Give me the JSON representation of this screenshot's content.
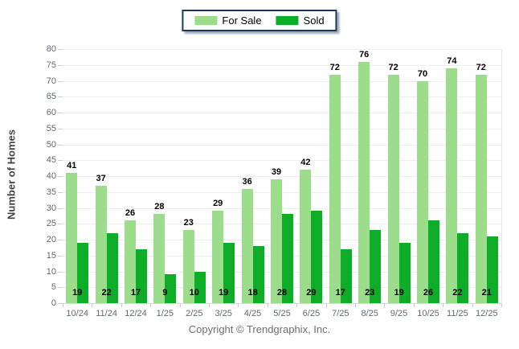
{
  "chart_data": {
    "type": "bar",
    "title": "",
    "categories": [
      "10/24",
      "11/24",
      "12/24",
      "1/25",
      "2/25",
      "3/25",
      "4/25",
      "5/25",
      "6/25",
      "7/25",
      "8/25",
      "9/25",
      "10/25",
      "11/25",
      "12/25"
    ],
    "series": [
      {
        "name": "For Sale",
        "color": "#9CDD8C",
        "values": [
          41,
          37,
          26,
          28,
          23,
          29,
          36,
          39,
          42,
          72,
          76,
          72,
          70,
          74,
          72
        ]
      },
      {
        "name": "Sold",
        "color": "#0EAD28",
        "values": [
          19,
          22,
          17,
          9,
          10,
          19,
          18,
          28,
          29,
          17,
          23,
          19,
          26,
          22,
          21
        ]
      }
    ],
    "xlabel": "",
    "ylabel": "Number of Homes",
    "ylim": [
      0,
      80
    ],
    "ytick_step": 5,
    "grid": true,
    "legend_position": "top-center",
    "value_labels": {
      "for_sale": "above-bar",
      "sold": "inside-bottom"
    }
  },
  "footer": {
    "copyright": "Copyright © Trendgraphix, Inc."
  }
}
